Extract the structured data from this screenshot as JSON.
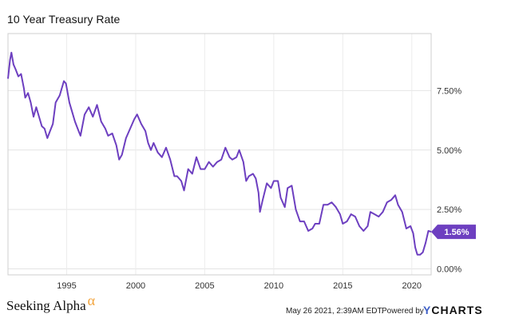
{
  "chart_data": {
    "type": "line",
    "title": "10 Year Treasury Rate",
    "xlabel": "",
    "ylabel": "",
    "x_ticks": [
      "1995",
      "2000",
      "2005",
      "2010",
      "2015",
      "2020"
    ],
    "y_ticks": [
      "7.50%",
      "5.00%",
      "2.50%",
      "0.00%"
    ],
    "xlim": [
      1990.75,
      2021.4
    ],
    "ylim": [
      -0.25,
      9.9
    ],
    "grid": "horizontal",
    "series": [
      {
        "name": "10 Year Treasury Rate",
        "color": "#6d3fc0",
        "x": [
          1990.75,
          1990.9,
          1991.0,
          1991.15,
          1991.3,
          1991.5,
          1991.7,
          1991.9,
          1992.0,
          1992.2,
          1992.4,
          1992.6,
          1992.8,
          1993.0,
          1993.2,
          1993.4,
          1993.6,
          1993.8,
          1994.0,
          1994.2,
          1994.5,
          1994.8,
          1994.95,
          1995.2,
          1995.4,
          1995.6,
          1995.8,
          1996.0,
          1996.3,
          1996.6,
          1996.9,
          1997.2,
          1997.5,
          1997.8,
          1998.0,
          1998.3,
          1998.6,
          1998.8,
          1999.0,
          1999.3,
          1999.6,
          1999.9,
          2000.1,
          2000.4,
          2000.7,
          2000.9,
          2001.1,
          2001.3,
          2001.6,
          2001.9,
          2002.2,
          2002.5,
          2002.8,
          2003.0,
          2003.3,
          2003.5,
          2003.8,
          2004.1,
          2004.4,
          2004.7,
          2005.0,
          2005.3,
          2005.6,
          2005.9,
          2006.2,
          2006.5,
          2006.8,
          2007.0,
          2007.3,
          2007.5,
          2007.8,
          2008.0,
          2008.2,
          2008.5,
          2008.7,
          2008.9,
          2009.0,
          2009.2,
          2009.5,
          2009.8,
          2010.0,
          2010.3,
          2010.5,
          2010.8,
          2011.0,
          2011.3,
          2011.6,
          2011.9,
          2012.2,
          2012.5,
          2012.8,
          2013.0,
          2013.3,
          2013.6,
          2013.9,
          2014.2,
          2014.5,
          2014.8,
          2015.0,
          2015.3,
          2015.6,
          2015.9,
          2016.2,
          2016.5,
          2016.8,
          2017.0,
          2017.3,
          2017.6,
          2017.9,
          2018.2,
          2018.5,
          2018.8,
          2019.0,
          2019.3,
          2019.6,
          2019.9,
          2020.1,
          2020.25,
          2020.4,
          2020.6,
          2020.8,
          2021.0,
          2021.2,
          2021.4
        ],
        "values": [
          8.0,
          8.8,
          9.1,
          8.6,
          8.4,
          8.1,
          8.2,
          7.6,
          7.2,
          7.4,
          7.0,
          6.4,
          6.8,
          6.4,
          6.0,
          5.9,
          5.5,
          5.8,
          6.1,
          7.0,
          7.3,
          7.9,
          7.8,
          7.0,
          6.6,
          6.2,
          5.9,
          5.6,
          6.5,
          6.8,
          6.4,
          6.9,
          6.2,
          5.9,
          5.6,
          5.7,
          5.2,
          4.6,
          4.8,
          5.5,
          5.9,
          6.3,
          6.5,
          6.1,
          5.8,
          5.3,
          5.0,
          5.3,
          4.9,
          4.7,
          5.1,
          4.6,
          3.9,
          3.9,
          3.7,
          3.3,
          4.2,
          4.0,
          4.7,
          4.2,
          4.2,
          4.5,
          4.3,
          4.5,
          4.6,
          5.1,
          4.7,
          4.6,
          4.7,
          5.0,
          4.5,
          3.7,
          3.9,
          4.0,
          3.8,
          3.2,
          2.4,
          2.9,
          3.6,
          3.4,
          3.7,
          3.7,
          3.0,
          2.6,
          3.4,
          3.5,
          2.5,
          2.0,
          2.0,
          1.6,
          1.7,
          1.9,
          1.9,
          2.7,
          2.7,
          2.8,
          2.6,
          2.3,
          1.9,
          2.0,
          2.3,
          2.2,
          1.8,
          1.6,
          1.8,
          2.4,
          2.3,
          2.2,
          2.4,
          2.8,
          2.9,
          3.1,
          2.7,
          2.4,
          1.7,
          1.8,
          1.5,
          0.9,
          0.6,
          0.6,
          0.7,
          1.1,
          1.6,
          1.56
        ]
      }
    ],
    "last_value_label": "1.56%"
  },
  "footer": {
    "brand": "Seeking Alpha",
    "brand_symbol": "α",
    "date": "May 26 2021, 2:39AM EDT.",
    "powered_by": "Powered by",
    "logo_y": "Y",
    "logo_rest": "CHARTS"
  }
}
